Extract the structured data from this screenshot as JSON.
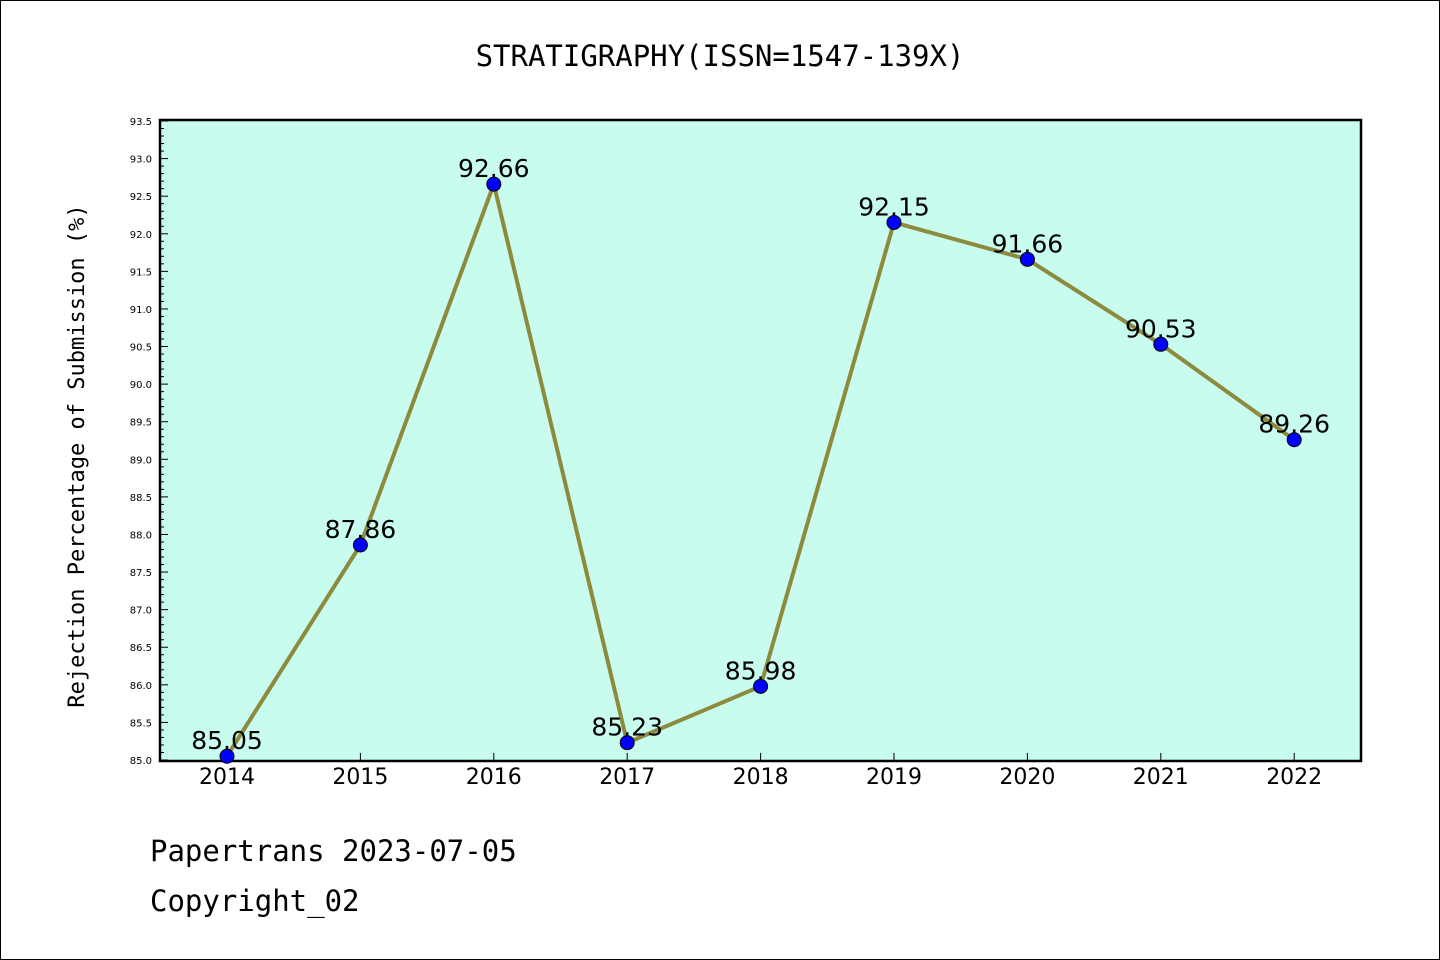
{
  "chart_data": {
    "type": "line",
    "title": "STRATIGRAPHY(ISSN=1547-139X)",
    "xlabel": "",
    "ylabel": "Rejection Percentage of Submission (%)",
    "categories": [
      "2014",
      "2015",
      "2016",
      "2017",
      "2018",
      "2019",
      "2020",
      "2021",
      "2022"
    ],
    "values": [
      85.05,
      87.86,
      92.66,
      85.23,
      85.98,
      92.15,
      91.66,
      90.53,
      89.26
    ],
    "data_labels": [
      "85.05",
      "87.86",
      "92.66",
      "85.23",
      "85.98",
      "92.15",
      "91.66",
      "90.53",
      "89.26"
    ],
    "ylim": [
      85.0,
      93.5
    ],
    "yticks": [
      "85.0",
      "85.5",
      "86.0",
      "86.5",
      "87.0",
      "87.5",
      "88.0",
      "88.5",
      "89.0",
      "89.5",
      "90.0",
      "90.5",
      "91.0",
      "91.5",
      "92.0",
      "92.5",
      "93.0",
      "93.5"
    ],
    "grid": false,
    "legend": "none",
    "colors": {
      "plot_background": "#c8fcee",
      "line": "#8c8a3c",
      "marker": "#0000ff"
    }
  },
  "footer": {
    "line1": "Papertrans 2023-07-05",
    "line2": "Copyright_02"
  }
}
